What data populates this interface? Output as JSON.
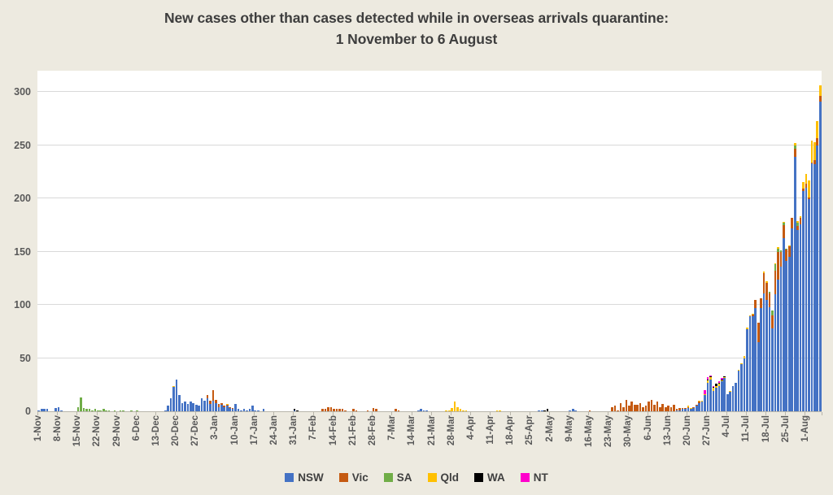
{
  "title": {
    "line1": "New cases other than cases detected while in overseas arrivals quarantine:",
    "line2": "1 November to 6 August"
  },
  "colors": {
    "background": "#EDEAE0",
    "plot_background": "#FFFFFF",
    "gridline": "#D9D9D9",
    "axis": "#B8B5AA",
    "title_text": "#3D3D3D",
    "tick_text": "#595959"
  },
  "chart_data": {
    "type": "bar",
    "stacked": true,
    "title": "New cases other than cases detected while in overseas arrivals quarantine: 1 November to 6 August",
    "xlabel": "",
    "ylabel": "",
    "grid": "horizontal",
    "legend_position": "bottom",
    "num_days": 279,
    "first_day_label": "1-Nov",
    "last_day_label": "6-Aug",
    "x_tick_interval_days": 7,
    "x_tick_labels": [
      "1-Nov",
      "8-Nov",
      "15-Nov",
      "22-Nov",
      "29-Nov",
      "6-Dec",
      "13-Dec",
      "20-Dec",
      "27-Dec",
      "3-Jan",
      "10-Jan",
      "17-Jan",
      "24-Jan",
      "31-Jan",
      "7-Feb",
      "14-Feb",
      "21-Feb",
      "28-Feb",
      "7-Mar",
      "14-Mar",
      "21-Mar",
      "28-Mar",
      "4-Apr",
      "11-Apr",
      "18-Apr",
      "25-Apr",
      "2-May",
      "9-May",
      "16-May",
      "23-May",
      "30-May",
      "6-Jun",
      "13-Jun",
      "20-Jun",
      "27-Jun",
      "4-Jul",
      "11-Jul",
      "18-Jul",
      "25-Jul",
      "1-Aug"
    ],
    "y_ticks": [
      0,
      50,
      100,
      150,
      200,
      250,
      300
    ],
    "y_max": 320,
    "series": [
      {
        "name": "NSW",
        "color": "#4472C4",
        "points_by_day_index": {
          "0": 1,
          "1": 2,
          "2": 2,
          "3": 2,
          "6": 3,
          "7": 4,
          "8": 1,
          "45": 1,
          "46": 5,
          "47": 12,
          "48": 23,
          "49": 30,
          "50": 15,
          "51": 8,
          "52": 9,
          "53": 7,
          "54": 9,
          "55": 8,
          "56": 6,
          "57": 5,
          "58": 12,
          "59": 10,
          "60": 12,
          "61": 7,
          "62": 10,
          "63": 8,
          "64": 4,
          "65": 6,
          "66": 4,
          "67": 5,
          "68": 3,
          "69": 2,
          "70": 7,
          "71": 2,
          "72": 1,
          "73": 2,
          "74": 1,
          "75": 2,
          "76": 5,
          "77": 1,
          "78": 1,
          "80": 2,
          "91": 1,
          "135": 1,
          "136": 2,
          "137": 1,
          "138": 1,
          "178": 1,
          "179": 1,
          "189": 1,
          "190": 2,
          "191": 1,
          "227": 1,
          "228": 1,
          "229": 2,
          "230": 2,
          "231": 3,
          "232": 2,
          "233": 3,
          "234": 5,
          "235": 8,
          "236": 9,
          "237": 15,
          "238": 27,
          "239": 30,
          "240": 19,
          "241": 22,
          "242": 24,
          "243": 28,
          "244": 31,
          "245": 16,
          "246": 18,
          "247": 24,
          "248": 27,
          "249": 38,
          "250": 44,
          "251": 50,
          "252": 77,
          "253": 89,
          "254": 89,
          "255": 97,
          "256": 65,
          "257": 97,
          "258": 111,
          "259": 105,
          "260": 98,
          "261": 78,
          "262": 110,
          "263": 124,
          "264": 136,
          "265": 163,
          "266": 141,
          "267": 145,
          "268": 172,
          "269": 239,
          "270": 170,
          "271": 176,
          "272": 207,
          "273": 210,
          "274": 199,
          "275": 233,
          "276": 232,
          "277": 250,
          "278": 291
        }
      },
      {
        "name": "Vic",
        "color": "#C55A11",
        "points_by_day_index": {
          "60": 3,
          "61": 3,
          "62": 10,
          "63": 3,
          "64": 3,
          "65": 2,
          "66": 1,
          "67": 1,
          "68": 1,
          "69": 1,
          "101": 2,
          "102": 2,
          "103": 4,
          "104": 4,
          "105": 2,
          "106": 2,
          "107": 2,
          "108": 2,
          "109": 1,
          "112": 2,
          "113": 1,
          "117": 1,
          "119": 3,
          "120": 2,
          "127": 2,
          "128": 1,
          "196": 1,
          "204": 4,
          "205": 5,
          "206": 1,
          "207": 8,
          "208": 4,
          "209": 11,
          "210": 5,
          "211": 9,
          "212": 6,
          "213": 6,
          "214": 8,
          "215": 4,
          "216": 5,
          "217": 9,
          "218": 11,
          "219": 6,
          "220": 9,
          "221": 4,
          "222": 7,
          "223": 4,
          "224": 5,
          "225": 4,
          "226": 6,
          "227": 1,
          "228": 2,
          "229": 1,
          "230": 1,
          "231": 1,
          "233": 1,
          "234": 1,
          "235": 1,
          "254": 2,
          "255": 8,
          "256": 18,
          "257": 9,
          "258": 19,
          "259": 16,
          "260": 13,
          "261": 12,
          "262": 22,
          "263": 26,
          "264": 14,
          "265": 12,
          "266": 11,
          "267": 10,
          "268": 10,
          "269": 8,
          "270": 4,
          "271": 6,
          "272": 2,
          "273": 4,
          "274": 2,
          "275": 1,
          "276": 4,
          "277": 7,
          "278": 5
        }
      },
      {
        "name": "SA",
        "color": "#70AD47",
        "points_by_day_index": {
          "14": 4,
          "15": 13,
          "16": 3,
          "17": 2,
          "18": 2,
          "19": 1,
          "20": 2,
          "21": 1,
          "22": 1,
          "23": 2,
          "24": 1,
          "25": 1,
          "27": 1,
          "29": 1,
          "30": 1,
          "33": 1,
          "35": 1,
          "260": 1,
          "261": 5,
          "262": 6,
          "263": 3,
          "264": 1,
          "265": 2,
          "266": 1,
          "269": 3,
          "270": 3
        }
      },
      {
        "name": "Qld",
        "color": "#FFC000",
        "points_by_day_index": {
          "48": 1,
          "67": 1,
          "145": 1,
          "146": 1,
          "147": 3,
          "148": 9,
          "149": 4,
          "150": 2,
          "151": 1,
          "152": 1,
          "163": 1,
          "164": 1,
          "231": 1,
          "232": 1,
          "235": 1,
          "236": 1,
          "237": 1,
          "238": 2,
          "239": 2,
          "240": 3,
          "241": 2,
          "242": 2,
          "243": 1,
          "244": 1,
          "246": 1,
          "249": 1,
          "250": 1,
          "251": 2,
          "252": 2,
          "253": 1,
          "254": 1,
          "258": 1,
          "259": 1,
          "262": 1,
          "263": 1,
          "265": 1,
          "267": 1,
          "269": 2,
          "270": 2,
          "271": 1,
          "272": 6,
          "273": 9,
          "274": 16,
          "275": 20,
          "276": 17,
          "277": 16,
          "278": 10
        }
      },
      {
        "name": "WA",
        "color": "#000000",
        "points_by_day_index": {
          "91": 1,
          "92": 1,
          "180": 1,
          "181": 2,
          "238": 1,
          "239": 1,
          "240": 1,
          "241": 2,
          "242": 1,
          "243": 1,
          "244": 1
        }
      },
      {
        "name": "NT",
        "color": "#FF00CC",
        "points_by_day_index": {
          "237": 4,
          "238": 2,
          "239": 1,
          "240": 1,
          "242": 1,
          "243": 1
        }
      }
    ]
  }
}
